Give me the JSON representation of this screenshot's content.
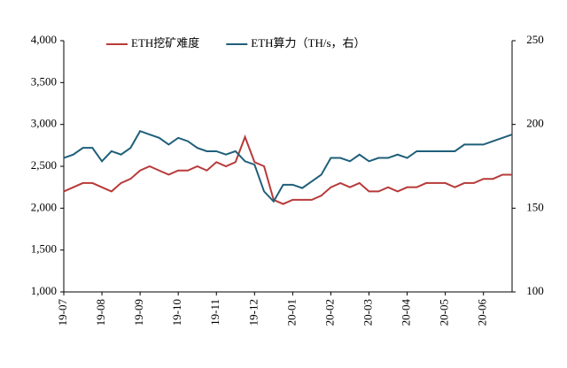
{
  "chart_data": {
    "type": "line",
    "categories": [
      "19-07",
      null,
      null,
      null,
      "19-08",
      null,
      null,
      null,
      "19-09",
      null,
      null,
      null,
      "19-10",
      null,
      null,
      null,
      "19-11",
      null,
      null,
      null,
      "19-12",
      null,
      null,
      null,
      "20-01",
      null,
      null,
      null,
      "20-02",
      null,
      null,
      null,
      "20-03",
      null,
      null,
      null,
      "20-04",
      null,
      null,
      null,
      "20-05",
      null,
      null,
      null,
      "20-06",
      null,
      null,
      null
    ],
    "series": [
      {
        "name": "ETH挖矿难度",
        "color": "#b83a3a",
        "values": [
          2200,
          2250,
          2300,
          2300,
          2250,
          2200,
          2300,
          2350,
          2450,
          2500,
          2450,
          2400,
          2450,
          2450,
          2500,
          2450,
          2550,
          2500,
          2550,
          2850,
          2550,
          2500,
          2100,
          2050,
          2100,
          2100,
          2100,
          2150,
          2250,
          2300,
          2250,
          2300,
          2200,
          2200,
          2250,
          2200,
          2250,
          2250,
          2300,
          2300,
          2300,
          2250,
          2300,
          2300,
          2350,
          2350,
          2400,
          2400
        ]
      },
      {
        "name": "ETH算力（TH/s，右）",
        "color": "#1f5f7a",
        "axis": "y2",
        "values": [
          180,
          182,
          186,
          186,
          178,
          184,
          182,
          186,
          196,
          194,
          192,
          188,
          192,
          190,
          186,
          184,
          184,
          182,
          184,
          178,
          176,
          160,
          154,
          164,
          164,
          162,
          166,
          170,
          180,
          180,
          178,
          182,
          178,
          180,
          180,
          182,
          180,
          184,
          184,
          184,
          184,
          184,
          188,
          188,
          188,
          190,
          192,
          194
        ]
      }
    ],
    "ylim": [
      1000,
      4000
    ],
    "yticks": [
      {
        "value": 1000,
        "label": "1,000"
      },
      {
        "value": 1500,
        "label": "1,500"
      },
      {
        "value": 2000,
        "label": "2,000"
      },
      {
        "value": 2500,
        "label": "2,500"
      },
      {
        "value": 3000,
        "label": "3,000"
      },
      {
        "value": 3500,
        "label": "3,500"
      },
      {
        "value": 4000,
        "label": "4,000"
      }
    ],
    "y2lim": [
      100,
      250
    ],
    "y2ticks": [
      100,
      150,
      200,
      250
    ],
    "legend": "top"
  }
}
